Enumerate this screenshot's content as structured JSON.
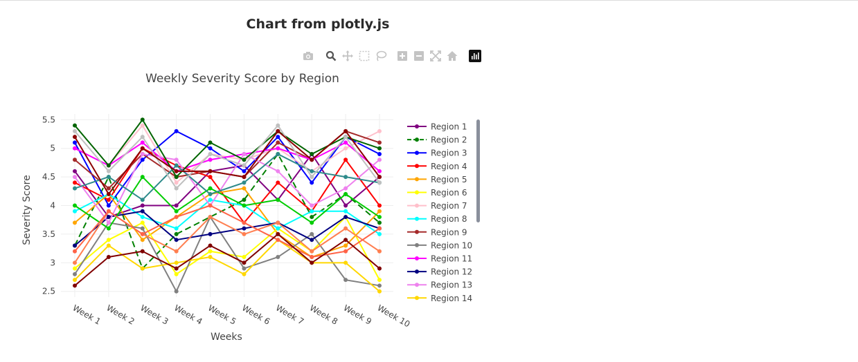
{
  "page": {
    "heading": "Chart from plotly.js"
  },
  "modebar": {
    "buttons": [
      {
        "name": "camera-icon",
        "label": "Download plot as a png"
      },
      {
        "name": "zoom-icon",
        "label": "Zoom"
      },
      {
        "name": "pan-icon",
        "label": "Pan"
      },
      {
        "name": "box-select-icon",
        "label": "Box Select"
      },
      {
        "name": "lasso-select-icon",
        "label": "Lasso Select"
      },
      {
        "name": "zoom-in-icon",
        "label": "Zoom in"
      },
      {
        "name": "zoom-out-icon",
        "label": "Zoom out"
      },
      {
        "name": "autoscale-icon",
        "label": "Autoscale"
      },
      {
        "name": "reset-axes-icon",
        "label": "Reset axes"
      },
      {
        "name": "plotly-logo-icon",
        "label": "Produced with Plotly"
      }
    ]
  },
  "chart_data": {
    "type": "line",
    "title": "Weekly Severity Score by Region",
    "xlabel": "Weeks",
    "ylabel": "Severity Score",
    "categories": [
      "Week 1",
      "Week 2",
      "Week 3",
      "Week 4",
      "Week 5",
      "Week 6",
      "Week 7",
      "Week 8",
      "Week 9",
      "Week 10"
    ],
    "ylim": [
      2.4,
      5.6
    ],
    "yticks": [
      2.5,
      3,
      3.5,
      4,
      4.5,
      5,
      5.5
    ],
    "ytick_labels": [
      "2.5",
      "3",
      "3.5",
      "4",
      "4.5",
      "5",
      "5.5"
    ],
    "grid": true,
    "legend_position": "right",
    "series": [
      {
        "name": "Region 1",
        "color": "#800080",
        "dash": false,
        "values": [
          4.6,
          3.8,
          4.0,
          4.0,
          4.6,
          4.7,
          4.1,
          4.9,
          4.0,
          4.5
        ]
      },
      {
        "name": "Region 2",
        "color": "#008000",
        "dash": true,
        "values": [
          3.3,
          4.5,
          2.9,
          3.5,
          3.8,
          4.1,
          4.9,
          3.8,
          4.2,
          3.7
        ]
      },
      {
        "name": "Region 3",
        "color": "#0000ff",
        "dash": false,
        "values": [
          5.1,
          4.0,
          4.8,
          5.3,
          5.0,
          4.6,
          5.2,
          4.4,
          5.2,
          4.9
        ]
      },
      {
        "name": "Region 4",
        "color": "#ff0000",
        "dash": false,
        "values": [
          4.4,
          4.1,
          5.0,
          4.7,
          4.5,
          3.7,
          4.4,
          3.9,
          4.8,
          4.0
        ]
      },
      {
        "name": "Region 5",
        "color": "#ffa500",
        "dash": false,
        "values": [
          3.7,
          4.2,
          3.4,
          3.8,
          4.2,
          4.3,
          3.5,
          3.1,
          3.3,
          3.9
        ]
      },
      {
        "name": "Region 6",
        "color": "#ffff00",
        "dash": false,
        "values": [
          2.9,
          3.4,
          3.7,
          2.8,
          3.2,
          3.1,
          3.6,
          3.2,
          3.8,
          2.7
        ]
      },
      {
        "name": "Region 7",
        "color": "#ffc0cb",
        "dash": false,
        "values": [
          5.0,
          4.7,
          5.4,
          4.4,
          4.9,
          4.8,
          5.0,
          4.6,
          5.0,
          5.3
        ]
      },
      {
        "name": "Region 8",
        "color": "#00ffff",
        "dash": false,
        "values": [
          3.9,
          4.2,
          3.8,
          3.6,
          4.1,
          4.0,
          3.6,
          3.9,
          3.9,
          3.5
        ]
      },
      {
        "name": "Region 9",
        "color": "#a52a2a",
        "dash": false,
        "values": [
          4.8,
          4.3,
          4.9,
          4.5,
          4.6,
          4.5,
          5.1,
          4.8,
          5.3,
          5.1
        ]
      },
      {
        "name": "Region 10",
        "color": "#808080",
        "dash": false,
        "values": [
          2.8,
          3.7,
          3.6,
          2.5,
          3.8,
          2.9,
          3.1,
          3.5,
          2.7,
          2.6
        ]
      },
      {
        "name": "Region 11",
        "color": "#ff00ff",
        "dash": false,
        "values": [
          5.0,
          4.7,
          5.1,
          4.6,
          4.8,
          4.9,
          5.0,
          4.8,
          5.1,
          4.6
        ]
      },
      {
        "name": "Region 12",
        "color": "#000080",
        "dash": false,
        "values": [
          3.3,
          3.8,
          3.9,
          3.4,
          3.5,
          3.6,
          3.7,
          3.4,
          3.8,
          3.6
        ]
      },
      {
        "name": "Region 13",
        "color": "#ee82ee",
        "dash": false,
        "values": [
          4.5,
          3.7,
          4.9,
          4.8,
          4.0,
          4.9,
          4.6,
          4.0,
          4.3,
          4.8
        ]
      },
      {
        "name": "Region 14",
        "color": "#ffd700",
        "dash": false,
        "values": [
          2.7,
          3.3,
          2.9,
          3.0,
          3.1,
          2.8,
          3.4,
          3.0,
          3.0,
          2.5
        ]
      },
      {
        "name": "",
        "color": "#00cc00",
        "dash": false,
        "values": [
          4.0,
          3.6,
          4.5,
          3.9,
          4.3,
          4.0,
          4.1,
          3.7,
          4.2,
          3.8
        ]
      },
      {
        "name": "",
        "color": "#006400",
        "dash": false,
        "values": [
          5.4,
          4.7,
          5.5,
          4.5,
          5.1,
          4.8,
          5.3,
          4.9,
          5.2,
          5.0
        ]
      },
      {
        "name": "",
        "color": "#2e8b8b",
        "dash": false,
        "values": [
          4.3,
          4.5,
          4.1,
          4.7,
          4.2,
          4.4,
          4.9,
          4.6,
          4.5,
          4.4
        ]
      },
      {
        "name": "",
        "color": "#ff7f50",
        "dash": false,
        "values": [
          3.0,
          3.9,
          3.5,
          3.2,
          3.8,
          3.5,
          3.7,
          3.2,
          3.6,
          3.2
        ]
      },
      {
        "name": "",
        "color": "#ff6347",
        "dash": false,
        "values": [
          3.2,
          3.9,
          3.5,
          3.8,
          4.0,
          3.7,
          3.4,
          3.1,
          3.2,
          3.6
        ]
      },
      {
        "name": "",
        "color": "#800000",
        "dash": false,
        "values": [
          2.6,
          3.1,
          3.2,
          2.9,
          3.3,
          3.0,
          3.5,
          3.0,
          3.4,
          2.9
        ]
      },
      {
        "name": "",
        "color": "#c0c0c0",
        "dash": false,
        "values": [
          5.3,
          4.6,
          5.2,
          4.3,
          4.9,
          4.7,
          5.4,
          4.5,
          5.2,
          4.4
        ]
      },
      {
        "name": "",
        "color": "#8b0000",
        "dash": false,
        "values": [
          5.2,
          4.2,
          5.0,
          4.6,
          4.6,
          4.5,
          5.3,
          4.8,
          5.3,
          4.5
        ]
      }
    ]
  }
}
